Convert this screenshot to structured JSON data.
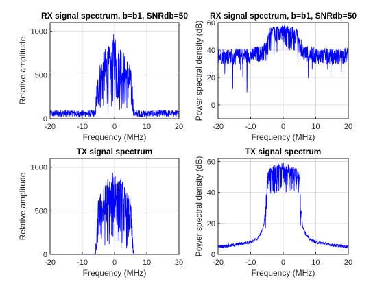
{
  "chart_data": [
    {
      "type": "line",
      "title": "RX signal spectrum, b=b1, SNRdb=50",
      "xlabel": "Frequency (MHz)",
      "ylabel": "Relative amplitude",
      "xlim": [
        -20,
        20
      ],
      "ylim": [
        0,
        1100
      ],
      "xticks": [
        -20,
        -10,
        0,
        10,
        20
      ],
      "yticks": [
        0,
        500,
        1000
      ],
      "grid": true,
      "color": "#0000ff",
      "series": [
        {
          "x": [
            -20,
            -15,
            -10,
            -6,
            -5,
            -4,
            -3,
            -2,
            -1,
            0,
            1,
            2,
            3,
            4,
            5,
            6,
            10,
            15,
            20
          ],
          "y": [
            70,
            75,
            70,
            75,
            600,
            700,
            800,
            850,
            800,
            1050,
            800,
            900,
            750,
            700,
            600,
            75,
            70,
            75,
            70
          ]
        }
      ]
    },
    {
      "type": "line",
      "title": "RX signal spectrum, b=b1, SNRdb=50",
      "xlabel": "Frequency (MHz)",
      "ylabel": "Power spectral density (dB)",
      "xlim": [
        -20,
        20
      ],
      "ylim": [
        -10,
        60
      ],
      "xticks": [
        -20,
        -10,
        0,
        10,
        20
      ],
      "yticks": [
        0,
        20,
        40,
        60
      ],
      "grid": true,
      "color": "#0000ff",
      "series": [
        {
          "x": [
            -20,
            -15,
            -10,
            -6,
            -5,
            -4,
            -2,
            0,
            2,
            4,
            5,
            6,
            10,
            15,
            20
          ],
          "y": [
            36,
            35,
            36,
            38,
            48,
            55,
            56,
            57,
            56,
            55,
            48,
            38,
            36,
            35,
            36
          ]
        }
      ]
    },
    {
      "type": "line",
      "title": "TX signal spectrum",
      "xlabel": "Frequency (MHz)",
      "ylabel": "Relative amplitude",
      "xlim": [
        -20,
        20
      ],
      "ylim": [
        0,
        1100
      ],
      "xticks": [
        -20,
        -10,
        0,
        10,
        20
      ],
      "yticks": [
        0,
        500,
        1000
      ],
      "grid": true,
      "color": "#0000ff",
      "series": [
        {
          "x": [
            -20,
            -15,
            -10,
            -6,
            -5,
            -4,
            -3,
            -2,
            -1,
            0,
            1,
            2,
            3,
            4,
            5,
            6,
            10,
            15,
            20
          ],
          "y": [
            2,
            2,
            2,
            5,
            650,
            750,
            800,
            900,
            850,
            1100,
            850,
            900,
            800,
            700,
            650,
            5,
            2,
            2,
            2
          ]
        }
      ]
    },
    {
      "type": "line",
      "title": "TX signal spectrum",
      "xlabel": "Frequency (MHz)",
      "ylabel": "Power spectral density (dB)",
      "xlim": [
        -20,
        20
      ],
      "ylim": [
        0,
        62
      ],
      "xticks": [
        -20,
        -10,
        0,
        10,
        20
      ],
      "yticks": [
        0,
        20,
        40,
        60
      ],
      "grid": true,
      "color": "#0000ff",
      "series": [
        {
          "x": [
            -20,
            -15,
            -10,
            -8,
            -7,
            -6,
            -5.5,
            -5,
            -4,
            -2,
            0,
            2,
            4,
            5,
            5.5,
            6,
            7,
            8,
            10,
            15,
            20
          ],
          "y": [
            5,
            6,
            8,
            10,
            13,
            18,
            28,
            50,
            56,
            57,
            58,
            57,
            56,
            50,
            28,
            18,
            13,
            10,
            8,
            6,
            5
          ]
        }
      ]
    }
  ]
}
